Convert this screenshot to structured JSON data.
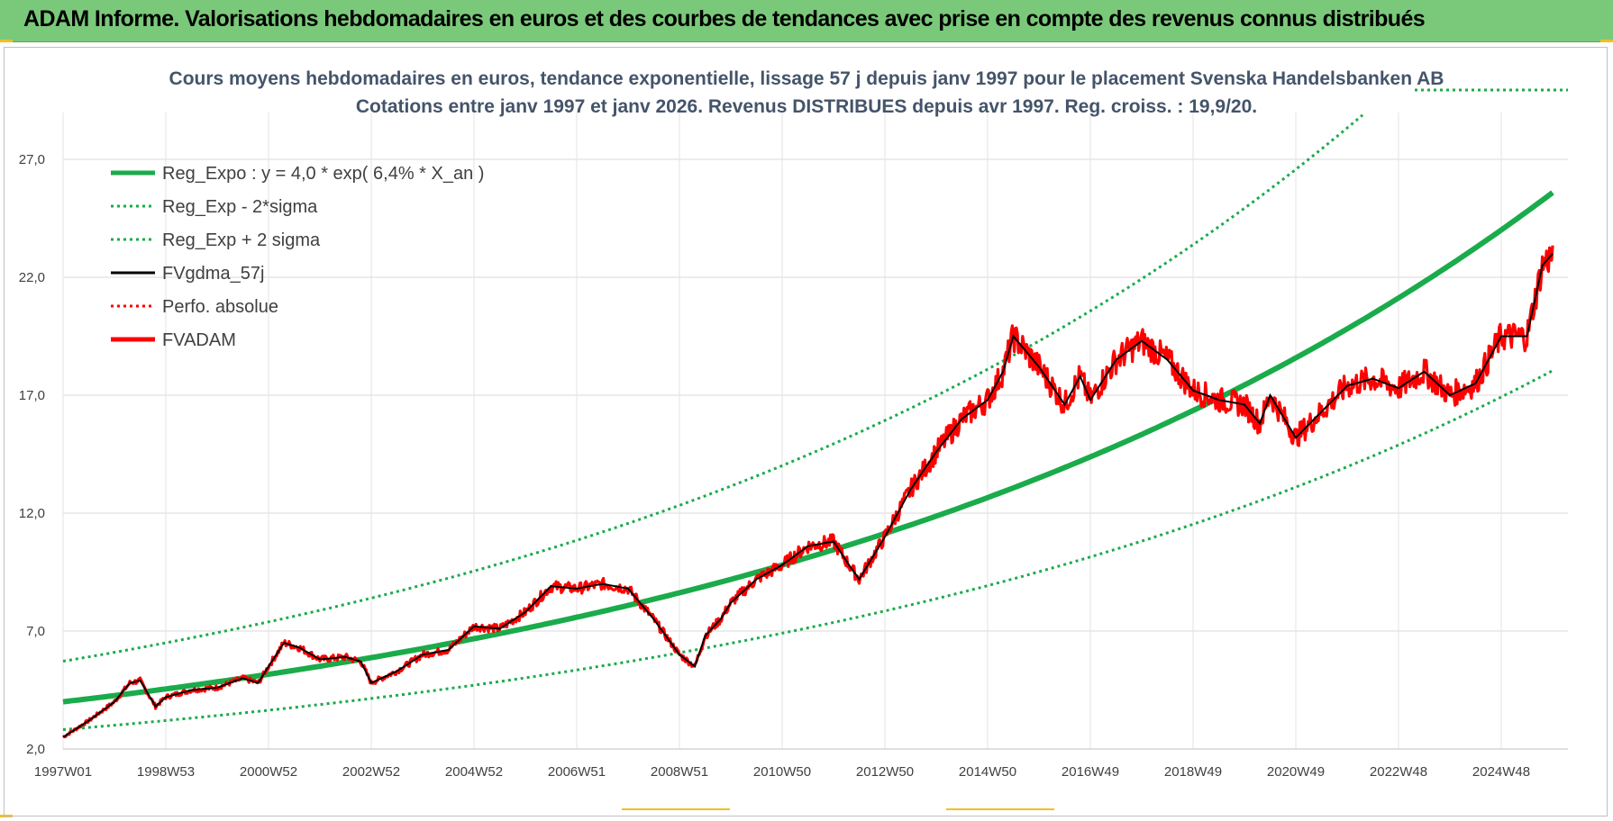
{
  "header": {
    "title": "ADAM Informe. Valorisations hebdomadaires en euros et des courbes de tendances avec prise en compte des revenus connus distribués"
  },
  "chart_data": {
    "type": "line",
    "title": "Cours moyens hebdomadaires en euros, tendance exponentielle, lissage 57 j depuis janv 1997 pour le placement Svenska Handelsbanken AB",
    "subtitle": "Cotations entre janv 1997 et janv 2026. Revenus DISTRIBUES depuis avr 1997.  Reg. croiss. : 19,9/20.",
    "ylim": [
      2,
      29
    ],
    "yticks": [
      "2,0",
      "7,0",
      "12,0",
      "17,0",
      "22,0",
      "27,0"
    ],
    "ytick_values": [
      2,
      7,
      12,
      17,
      22,
      27
    ],
    "xlim": [
      0,
      29.1
    ],
    "xticks": [
      "1997W01",
      "1998W53",
      "2000W52",
      "2002W52",
      "2004W52",
      "2006W51",
      "2008W51",
      "2010W50",
      "2012W50",
      "2014W50",
      "2016W49",
      "2018W49",
      "2020W49",
      "2022W48",
      "2024W48"
    ],
    "xtick_values": [
      0,
      2,
      4,
      6,
      8,
      10,
      12,
      14,
      16,
      18,
      20,
      22,
      24,
      26,
      28
    ],
    "legend": [
      {
        "label": "Reg_Expo : y = 4,0 * exp( 6,4% *  X_an )",
        "color": "#1aab4b",
        "style": "solid-thick"
      },
      {
        "label": "Reg_Exp - 2*sigma",
        "color": "#1aab4b",
        "style": "dotted"
      },
      {
        "label": "Reg_Exp + 2 sigma",
        "color": "#1aab4b",
        "style": "dotted"
      },
      {
        "label": "FVgdma_57j",
        "color": "#000000",
        "style": "solid"
      },
      {
        "label": "Perfo. absolue",
        "color": "#ff0000",
        "style": "dotted"
      },
      {
        "label": "FVADAM",
        "color": "#ff0000",
        "style": "solid-thick"
      }
    ],
    "regression": {
      "a": 4.0,
      "rate": 0.064,
      "x_end": 29.0
    },
    "sigma_band": {
      "lower_factor": 0.705,
      "upper_factor": 1.43
    },
    "series": [
      {
        "name": "FVADAM",
        "x": [
          0,
          0.5,
          1,
          1.3,
          1.5,
          1.8,
          2,
          2.5,
          3,
          3.5,
          3.8,
          4,
          4.3,
          4.6,
          5,
          5.5,
          5.8,
          6,
          6.5,
          7,
          7.5,
          8,
          8.5,
          9,
          9.5,
          10,
          10.5,
          11,
          11.5,
          12,
          12.3,
          12.5,
          12.8,
          13,
          13.5,
          14,
          14.5,
          15,
          15.3,
          15.5,
          16,
          16.5,
          17,
          17.5,
          18,
          18.3,
          18.5,
          19,
          19.5,
          19.8,
          20,
          20.5,
          21,
          21.5,
          22,
          22.5,
          23,
          23.3,
          23.5,
          24,
          24.5,
          25,
          25.5,
          26,
          26.5,
          27,
          27.5,
          28,
          28.5,
          28.8,
          29.0
        ],
        "values": [
          2.5,
          3.2,
          4.0,
          4.8,
          4.9,
          3.8,
          4.2,
          4.5,
          4.6,
          5.0,
          4.8,
          5.5,
          6.5,
          6.3,
          5.8,
          5.9,
          5.7,
          4.8,
          5.3,
          6.0,
          6.2,
          7.2,
          7.1,
          7.8,
          8.9,
          8.8,
          9.0,
          8.8,
          7.5,
          6.0,
          5.5,
          6.8,
          7.5,
          8.2,
          9.2,
          9.8,
          10.6,
          10.8,
          9.8,
          9.2,
          11.0,
          13.0,
          14.6,
          16.0,
          16.8,
          18.0,
          19.5,
          18.2,
          16.6,
          17.8,
          16.8,
          18.5,
          19.3,
          18.5,
          17.2,
          16.8,
          16.6,
          15.8,
          17.0,
          15.2,
          16.3,
          17.4,
          17.7,
          17.3,
          18.0,
          17.0,
          17.5,
          19.5,
          19.5,
          22.5,
          23.0
        ]
      }
    ]
  }
}
